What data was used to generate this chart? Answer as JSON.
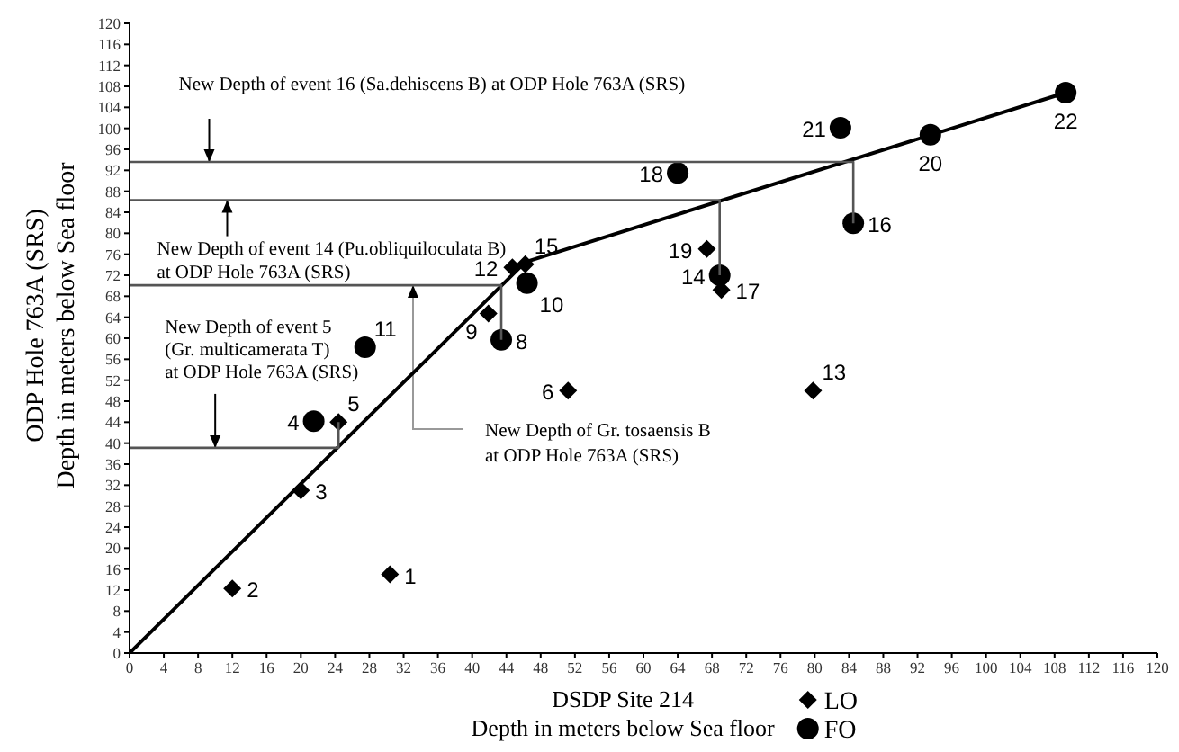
{
  "chart_data": {
    "type": "scatter",
    "xlabel": "DSDP Site 214\nDepth in meters below Sea floor",
    "ylabel": "ODP  Hole 763A (SRS)\nDepth in meters below Sea floor",
    "xlim": [
      0,
      120
    ],
    "ylim": [
      0,
      120
    ],
    "xticks": [
      0,
      4,
      8,
      12,
      16,
      20,
      24,
      28,
      32,
      36,
      40,
      44,
      48,
      52,
      56,
      60,
      64,
      68,
      72,
      76,
      80,
      84,
      88,
      92,
      96,
      100,
      104,
      108,
      112,
      116,
      120
    ],
    "yticks": [
      0,
      4,
      8,
      12,
      16,
      20,
      24,
      28,
      32,
      36,
      40,
      44,
      48,
      52,
      56,
      60,
      64,
      68,
      72,
      76,
      80,
      84,
      88,
      92,
      96,
      100,
      104,
      108,
      112,
      116,
      120
    ],
    "legend": "bottom",
    "series": [
      {
        "name": "LO",
        "type": "scatter",
        "marker": "diamond",
        "color": "#000000",
        "x": [
          30.4,
          12,
          20,
          24.4,
          51.2,
          41.9,
          44.7,
          79.8,
          46.2,
          69.1,
          67.4
        ],
        "values": [
          15,
          12.3,
          31,
          44,
          50,
          64.7,
          73.5,
          50,
          74.1,
          69.2,
          77
        ]
      },
      {
        "name": "FO",
        "type": "scatter",
        "marker": "circle",
        "color": "#000000",
        "x": [
          21.5,
          43.4,
          46.4,
          27.5,
          68.9,
          84.5,
          64,
          93.5,
          83,
          109.3
        ],
        "values": [
          44.2,
          59.7,
          70.5,
          58.3,
          72,
          81.9,
          91.5,
          98.8,
          100.1,
          106.8
        ]
      },
      {
        "type": "line",
        "marker": "none",
        "color": "#000000",
        "x": [
          0,
          46.2,
          109.3
        ],
        "values": [
          0,
          74.5,
          106.8
        ]
      },
      {
        "type": "line",
        "marker": "none",
        "color": "#555555",
        "x": [
          0,
          84.5,
          84.5
        ],
        "values": [
          93.6,
          93.6,
          81.9
        ]
      },
      {
        "type": "line",
        "marker": "none",
        "color": "#555555",
        "x": [
          0,
          68.9,
          68.9
        ],
        "values": [
          86.3,
          86.3,
          72
        ]
      },
      {
        "type": "line",
        "marker": "none",
        "color": "#555555",
        "x": [
          0,
          43.4,
          43.4
        ],
        "values": [
          70.1,
          70.1,
          59.7
        ]
      },
      {
        "type": "line",
        "marker": "none",
        "color": "#555555",
        "x": [
          0,
          24.4,
          24.4
        ],
        "values": [
          39.1,
          39.1,
          44
        ]
      }
    ],
    "annotations": [
      {
        "text": "New Depth of event 16 (Sa.dehiscens B) at ODP Hole 763A (SRS)",
        "x": 9.3,
        "y": 93.6
      },
      {
        "text": "New Depth of event 14 (Pu.obliquiloculata B)\nat ODP Hole 763A (SRS)",
        "x": 11.4,
        "y": 86.3
      },
      {
        "text": "New Depth of event 5\n(Gr. multicamerata T)\nat ODP Hole 763A (SRS)",
        "x": 10,
        "y": 39.1
      },
      {
        "text": "New Depth of Gr. tosaensis B\nat ODP Hole 763A (SRS)",
        "x": 33.1,
        "y": 70.1
      },
      {
        "text": "1",
        "x": 30.4,
        "y": 15
      },
      {
        "text": "2",
        "x": 12,
        "y": 12.3
      },
      {
        "text": "3",
        "x": 20,
        "y": 31
      },
      {
        "text": "5",
        "x": 24.4,
        "y": 44
      },
      {
        "text": "6",
        "x": 51.2,
        "y": 50
      },
      {
        "text": "9",
        "x": 41.9,
        "y": 64.7
      },
      {
        "text": "12",
        "x": 44.7,
        "y": 73.5
      },
      {
        "text": "13",
        "x": 79.8,
        "y": 50
      },
      {
        "text": "15",
        "x": 46.2,
        "y": 74.1
      },
      {
        "text": "17",
        "x": 69.1,
        "y": 69.2
      },
      {
        "text": "19",
        "x": 67.4,
        "y": 77
      },
      {
        "text": "4",
        "x": 21.5,
        "y": 44.2
      },
      {
        "text": "8",
        "x": 43.4,
        "y": 59.7
      },
      {
        "text": "10",
        "x": 46.4,
        "y": 70.5
      },
      {
        "text": "11",
        "x": 27.5,
        "y": 58.3
      },
      {
        "text": "14",
        "x": 68.9,
        "y": 72
      },
      {
        "text": "16",
        "x": 84.5,
        "y": 81.9
      },
      {
        "text": "18",
        "x": 64,
        "y": 91.5
      },
      {
        "text": "20",
        "x": 93.5,
        "y": 98.8
      },
      {
        "text": "21",
        "x": 83,
        "y": 100.1
      },
      {
        "text": "22",
        "x": 109.3,
        "y": 106.8
      }
    ]
  }
}
